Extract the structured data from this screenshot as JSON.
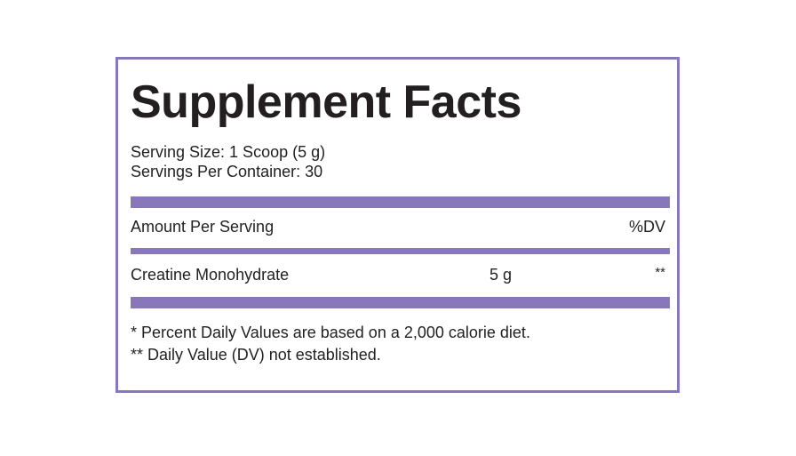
{
  "label": {
    "title": "Supplement Facts",
    "serving_size": "Serving Size: 1 Scoop (5 g)",
    "servings_per_container": "Servings Per Container: 30",
    "amount_header": "Amount Per Serving",
    "dv_header": "%DV",
    "ingredients": [
      {
        "name": "Creatine Monohydrate",
        "amount": "5 g",
        "dv": "**"
      }
    ],
    "footnotes": [
      "* Percent Daily Values are based on a 2,000 calorie diet.",
      "** Daily Value (DV) not established."
    ]
  },
  "colors": {
    "accent": "#8877bb",
    "text": "#231f20",
    "background": "#ffffff"
  }
}
